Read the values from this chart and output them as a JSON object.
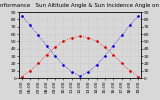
{
  "title": "Solar PV/Inverter Performance   Sun Altitude Angle & Sun Incidence Angle on PV Panels",
  "x_ticks": [
    "05:00",
    "06:00",
    "07:00",
    "08:00",
    "09:00",
    "10:00",
    "11:00",
    "12:00",
    "13:00",
    "14:00",
    "15:00",
    "16:00",
    "17:00",
    "18:00",
    "19:00"
  ],
  "x_values": [
    0,
    1,
    2,
    3,
    4,
    5,
    6,
    7,
    8,
    9,
    10,
    11,
    12,
    13,
    14
  ],
  "blue_values": [
    85,
    72,
    58,
    44,
    30,
    18,
    8,
    3,
    8,
    18,
    30,
    44,
    58,
    72,
    85
  ],
  "red_values": [
    2,
    10,
    20,
    32,
    42,
    50,
    55,
    57,
    55,
    50,
    42,
    32,
    20,
    10,
    2
  ],
  "blue_color": "#0000dd",
  "red_color": "#dd0000",
  "bg_color": "#d8d8d8",
  "grid_color": "#bbbbbb",
  "ylim": [
    0,
    90
  ],
  "y_ticks": [
    0,
    10,
    20,
    30,
    40,
    50,
    60,
    70,
    80,
    90
  ],
  "title_fontsize": 4.0,
  "tick_fontsize": 3.2,
  "dot_size": 1.8
}
